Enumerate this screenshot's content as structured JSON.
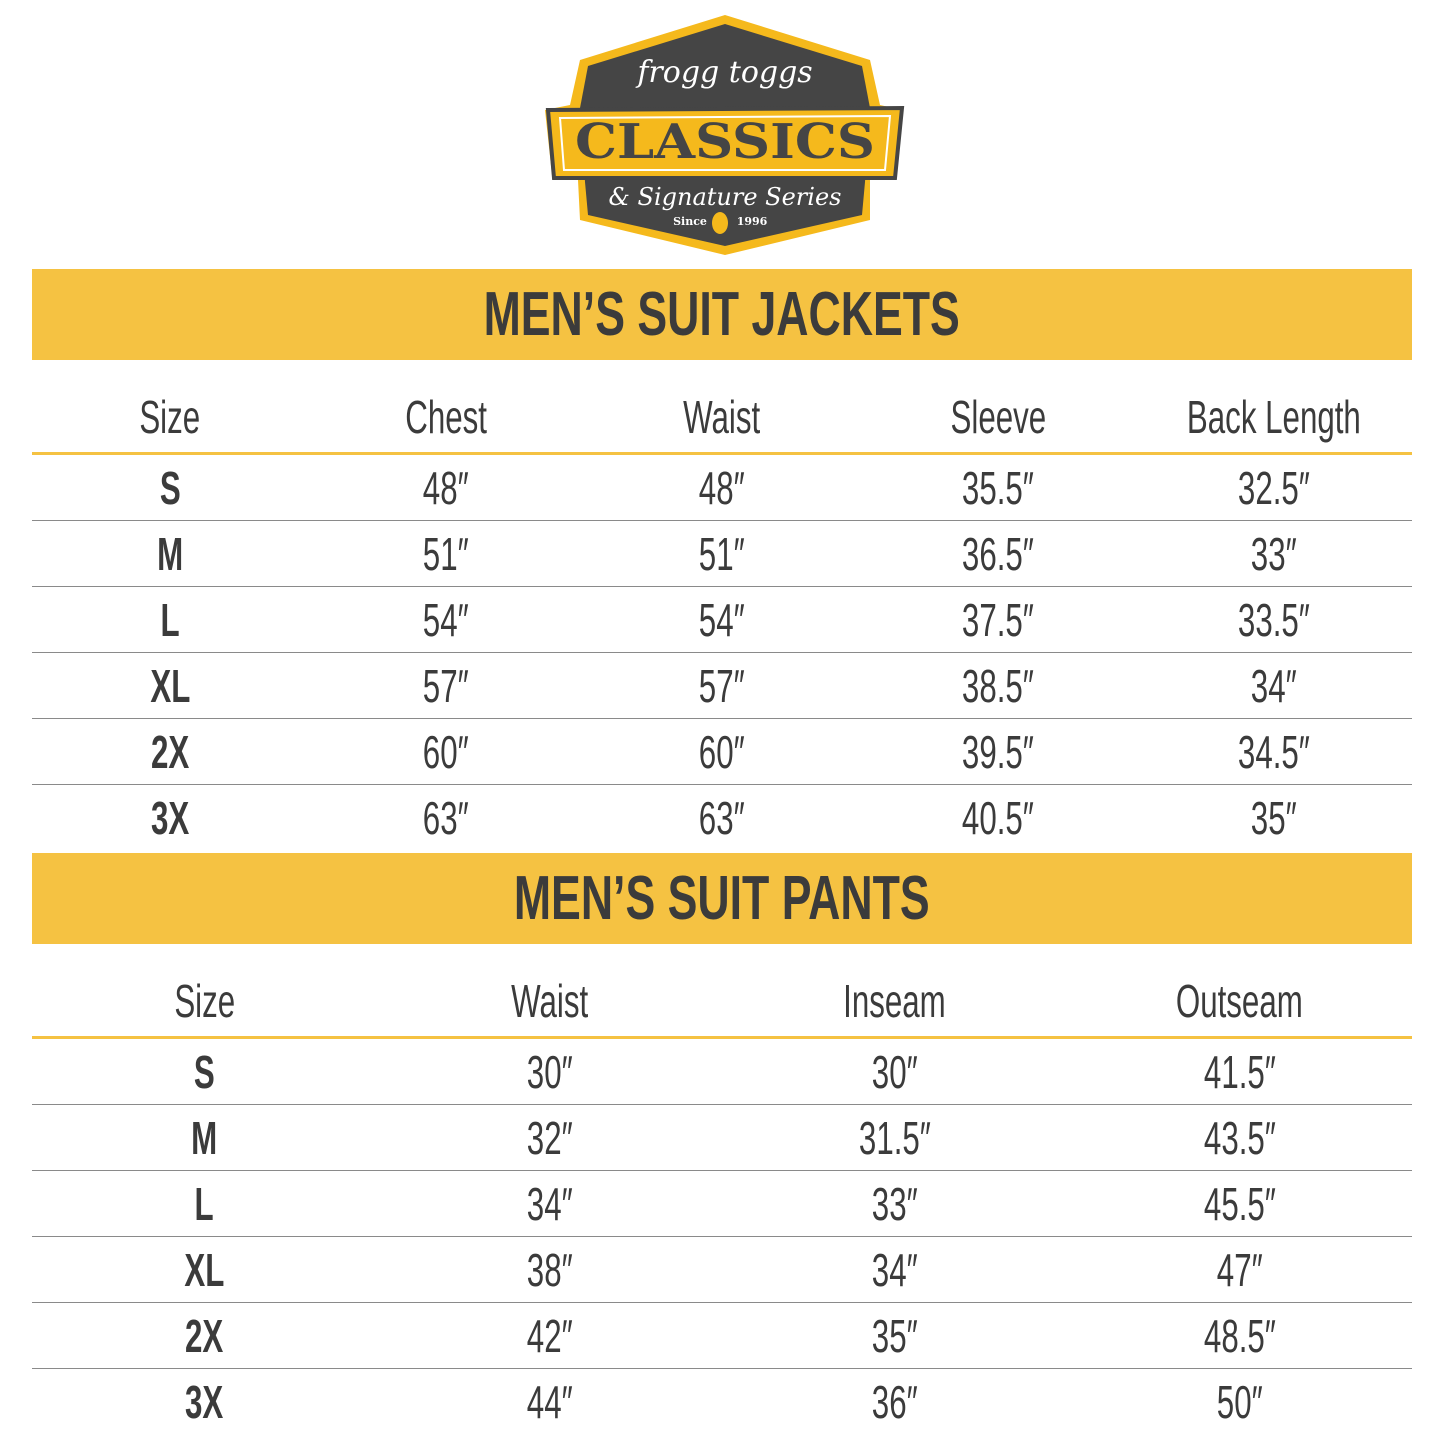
{
  "logo": {
    "brand": "frogg toggs",
    "title": "CLASSICS",
    "subtitle": "& Signature Series",
    "since": "Since",
    "year": "1996"
  },
  "colors": {
    "accent": "#f5c242",
    "text": "#3b3b3b",
    "logo_dark": "#454545"
  },
  "jackets": {
    "title": "MEN’S SUIT JACKETS",
    "columns": [
      "Size",
      "Chest",
      "Waist",
      "Sleeve",
      "Back Length"
    ],
    "rows": [
      [
        "S",
        "48″",
        "48″",
        "35.5″",
        "32.5″"
      ],
      [
        "M",
        "51″",
        "51″",
        "36.5″",
        "33″"
      ],
      [
        "L",
        "54″",
        "54″",
        "37.5″",
        "33.5″"
      ],
      [
        "XL",
        "57″",
        "57″",
        "38.5″",
        "34″"
      ],
      [
        "2X",
        "60″",
        "60″",
        "39.5″",
        "34.5″"
      ],
      [
        "3X",
        "63″",
        "63″",
        "40.5″",
        "35″"
      ]
    ]
  },
  "pants": {
    "title": "MEN’S SUIT PANTS",
    "columns": [
      "Size",
      "Waist",
      "Inseam",
      "Outseam"
    ],
    "rows": [
      [
        "S",
        "30″",
        "30″",
        "41.5″"
      ],
      [
        "M",
        "32″",
        "31.5″",
        "43.5″"
      ],
      [
        "L",
        "34″",
        "33″",
        "45.5″"
      ],
      [
        "XL",
        "38″",
        "34″",
        "47″"
      ],
      [
        "2X",
        "42″",
        "35″",
        "48.5″"
      ],
      [
        "3X",
        "44″",
        "36″",
        "50″"
      ]
    ]
  }
}
